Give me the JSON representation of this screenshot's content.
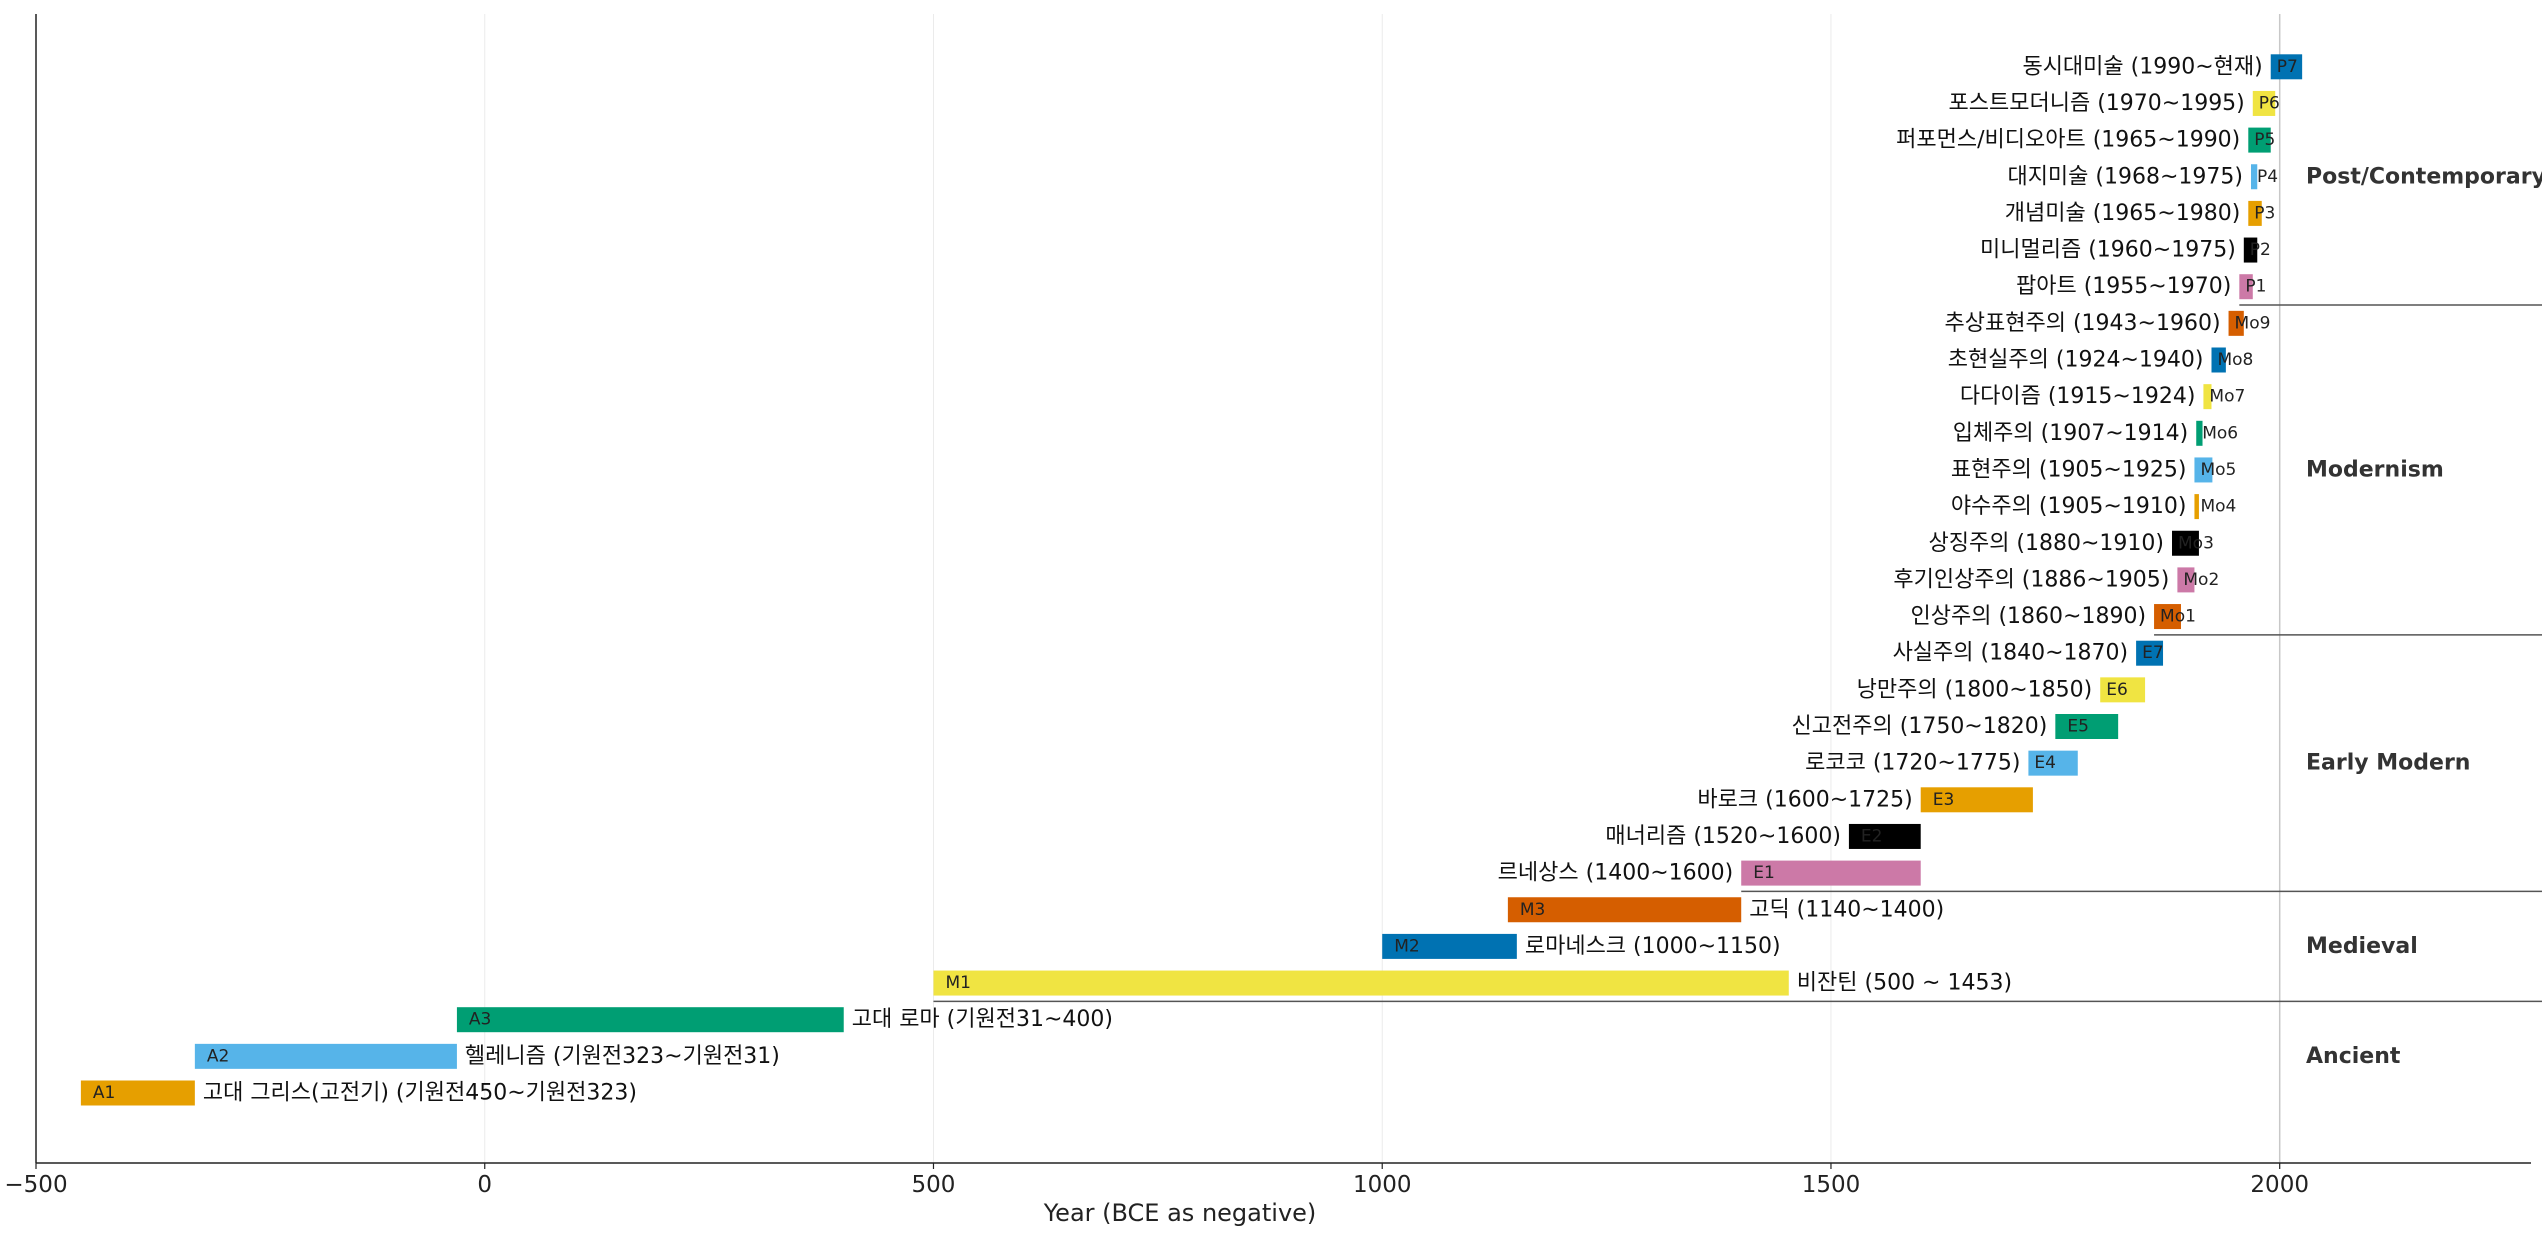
{
  "chart_data": {
    "type": "timeline-bar",
    "xlabel": "Year (BCE as negative)",
    "xlim": [
      -500,
      2280
    ],
    "xticks": [
      -500,
      0,
      500,
      1000,
      1500,
      2000
    ],
    "xtick_labels": [
      "−500",
      "0",
      "500",
      "1000",
      "1500",
      "2000"
    ],
    "reference_line": 2000,
    "eras": [
      {
        "name": "Ancient",
        "start_row": 0,
        "end_row": 2
      },
      {
        "name": "Medieval",
        "start_row": 3,
        "end_row": 5
      },
      {
        "name": "Early Modern",
        "start_row": 6,
        "end_row": 12
      },
      {
        "name": "Modernism",
        "start_row": 13,
        "end_row": 21
      },
      {
        "name": "Post/Contemporary",
        "start_row": 22,
        "end_row": 28
      }
    ],
    "movements": [
      {
        "code": "A1",
        "label": "고대 그리스(고전기) (기원전450~기원전323)",
        "start": -450,
        "end": -323,
        "color": "#E69F00",
        "label_side": "right"
      },
      {
        "code": "A2",
        "label": "헬레니즘 (기원전323~기원전31)",
        "start": -323,
        "end": -31,
        "color": "#56B4E9",
        "label_side": "right"
      },
      {
        "code": "A3",
        "label": "고대 로마 (기원전31~400)",
        "start": -31,
        "end": 400,
        "color": "#009E73",
        "label_side": "right"
      },
      {
        "code": "M1",
        "label": "비잔틴 (500 ~ 1453)",
        "start": 500,
        "end": 1453,
        "color": "#F0E442",
        "label_side": "right"
      },
      {
        "code": "M2",
        "label": "로마네스크 (1000~1150)",
        "start": 1000,
        "end": 1150,
        "color": "#0072B2",
        "label_side": "right"
      },
      {
        "code": "M3",
        "label": "고딕 (1140~1400)",
        "start": 1140,
        "end": 1400,
        "color": "#D55E00",
        "label_side": "right"
      },
      {
        "code": "E1",
        "label": "르네상스 (1400~1600)",
        "start": 1400,
        "end": 1600,
        "color": "#CC79A7",
        "label_side": "left"
      },
      {
        "code": "E2",
        "label": "매너리즘 (1520~1600)",
        "start": 1520,
        "end": 1600,
        "color": "#000000",
        "label_side": "left"
      },
      {
        "code": "E3",
        "label": "바로크 (1600~1725)",
        "start": 1600,
        "end": 1725,
        "color": "#E69F00",
        "label_side": "left"
      },
      {
        "code": "E4",
        "label": "로코코 (1720~1775)",
        "start": 1720,
        "end": 1775,
        "color": "#56B4E9",
        "label_side": "left"
      },
      {
        "code": "E5",
        "label": "신고전주의 (1750~1820)",
        "start": 1750,
        "end": 1820,
        "color": "#009E73",
        "label_side": "left"
      },
      {
        "code": "E6",
        "label": "낭만주의 (1800~1850)",
        "start": 1800,
        "end": 1850,
        "color": "#F0E442",
        "label_side": "left"
      },
      {
        "code": "E7",
        "label": "사실주의 (1840~1870)",
        "start": 1840,
        "end": 1870,
        "color": "#0072B2",
        "label_side": "left"
      },
      {
        "code": "Mo1",
        "label": "인상주의 (1860~1890)",
        "start": 1860,
        "end": 1890,
        "color": "#D55E00",
        "label_side": "left"
      },
      {
        "code": "Mo2",
        "label": "후기인상주의 (1886~1905)",
        "start": 1886,
        "end": 1905,
        "color": "#CC79A7",
        "label_side": "left"
      },
      {
        "code": "Mo3",
        "label": "상징주의 (1880~1910)",
        "start": 1880,
        "end": 1910,
        "color": "#000000",
        "label_side": "left"
      },
      {
        "code": "Mo4",
        "label": "야수주의 (1905~1910)",
        "start": 1905,
        "end": 1910,
        "color": "#E69F00",
        "label_side": "left"
      },
      {
        "code": "Mo5",
        "label": "표현주의 (1905~1925)",
        "start": 1905,
        "end": 1925,
        "color": "#56B4E9",
        "label_side": "left"
      },
      {
        "code": "Mo6",
        "label": "입체주의 (1907~1914)",
        "start": 1907,
        "end": 1914,
        "color": "#009E73",
        "label_side": "left"
      },
      {
        "code": "Mo7",
        "label": "다다이즘 (1915~1924)",
        "start": 1915,
        "end": 1924,
        "color": "#F0E442",
        "label_side": "left"
      },
      {
        "code": "Mo8",
        "label": "초현실주의 (1924~1940)",
        "start": 1924,
        "end": 1940,
        "color": "#0072B2",
        "label_side": "left"
      },
      {
        "code": "Mo9",
        "label": "추상표현주의 (1943~1960)",
        "start": 1943,
        "end": 1960,
        "color": "#D55E00",
        "label_side": "left"
      },
      {
        "code": "P1",
        "label": "팝아트 (1955~1970)",
        "start": 1955,
        "end": 1970,
        "color": "#CC79A7",
        "label_side": "left"
      },
      {
        "code": "P2",
        "label": "미니멀리즘 (1960~1975)",
        "start": 1960,
        "end": 1975,
        "color": "#000000",
        "label_side": "left"
      },
      {
        "code": "P3",
        "label": "개념미술 (1965~1980)",
        "start": 1965,
        "end": 1980,
        "color": "#E69F00",
        "label_side": "left"
      },
      {
        "code": "P4",
        "label": "대지미술 (1968~1975)",
        "start": 1968,
        "end": 1975,
        "color": "#56B4E9",
        "label_side": "left"
      },
      {
        "code": "P5",
        "label": "퍼포먼스/비디오아트 (1965~1990)",
        "start": 1965,
        "end": 1990,
        "color": "#009E73",
        "label_side": "left"
      },
      {
        "code": "P6",
        "label": "포스트모더니즘 (1970~1995)",
        "start": 1970,
        "end": 1995,
        "color": "#F0E442",
        "label_side": "left"
      },
      {
        "code": "P7",
        "label": "동시대미술 (1990~현재)",
        "start": 1990,
        "end": 2025,
        "color": "#0072B2",
        "label_side": "left"
      }
    ]
  }
}
